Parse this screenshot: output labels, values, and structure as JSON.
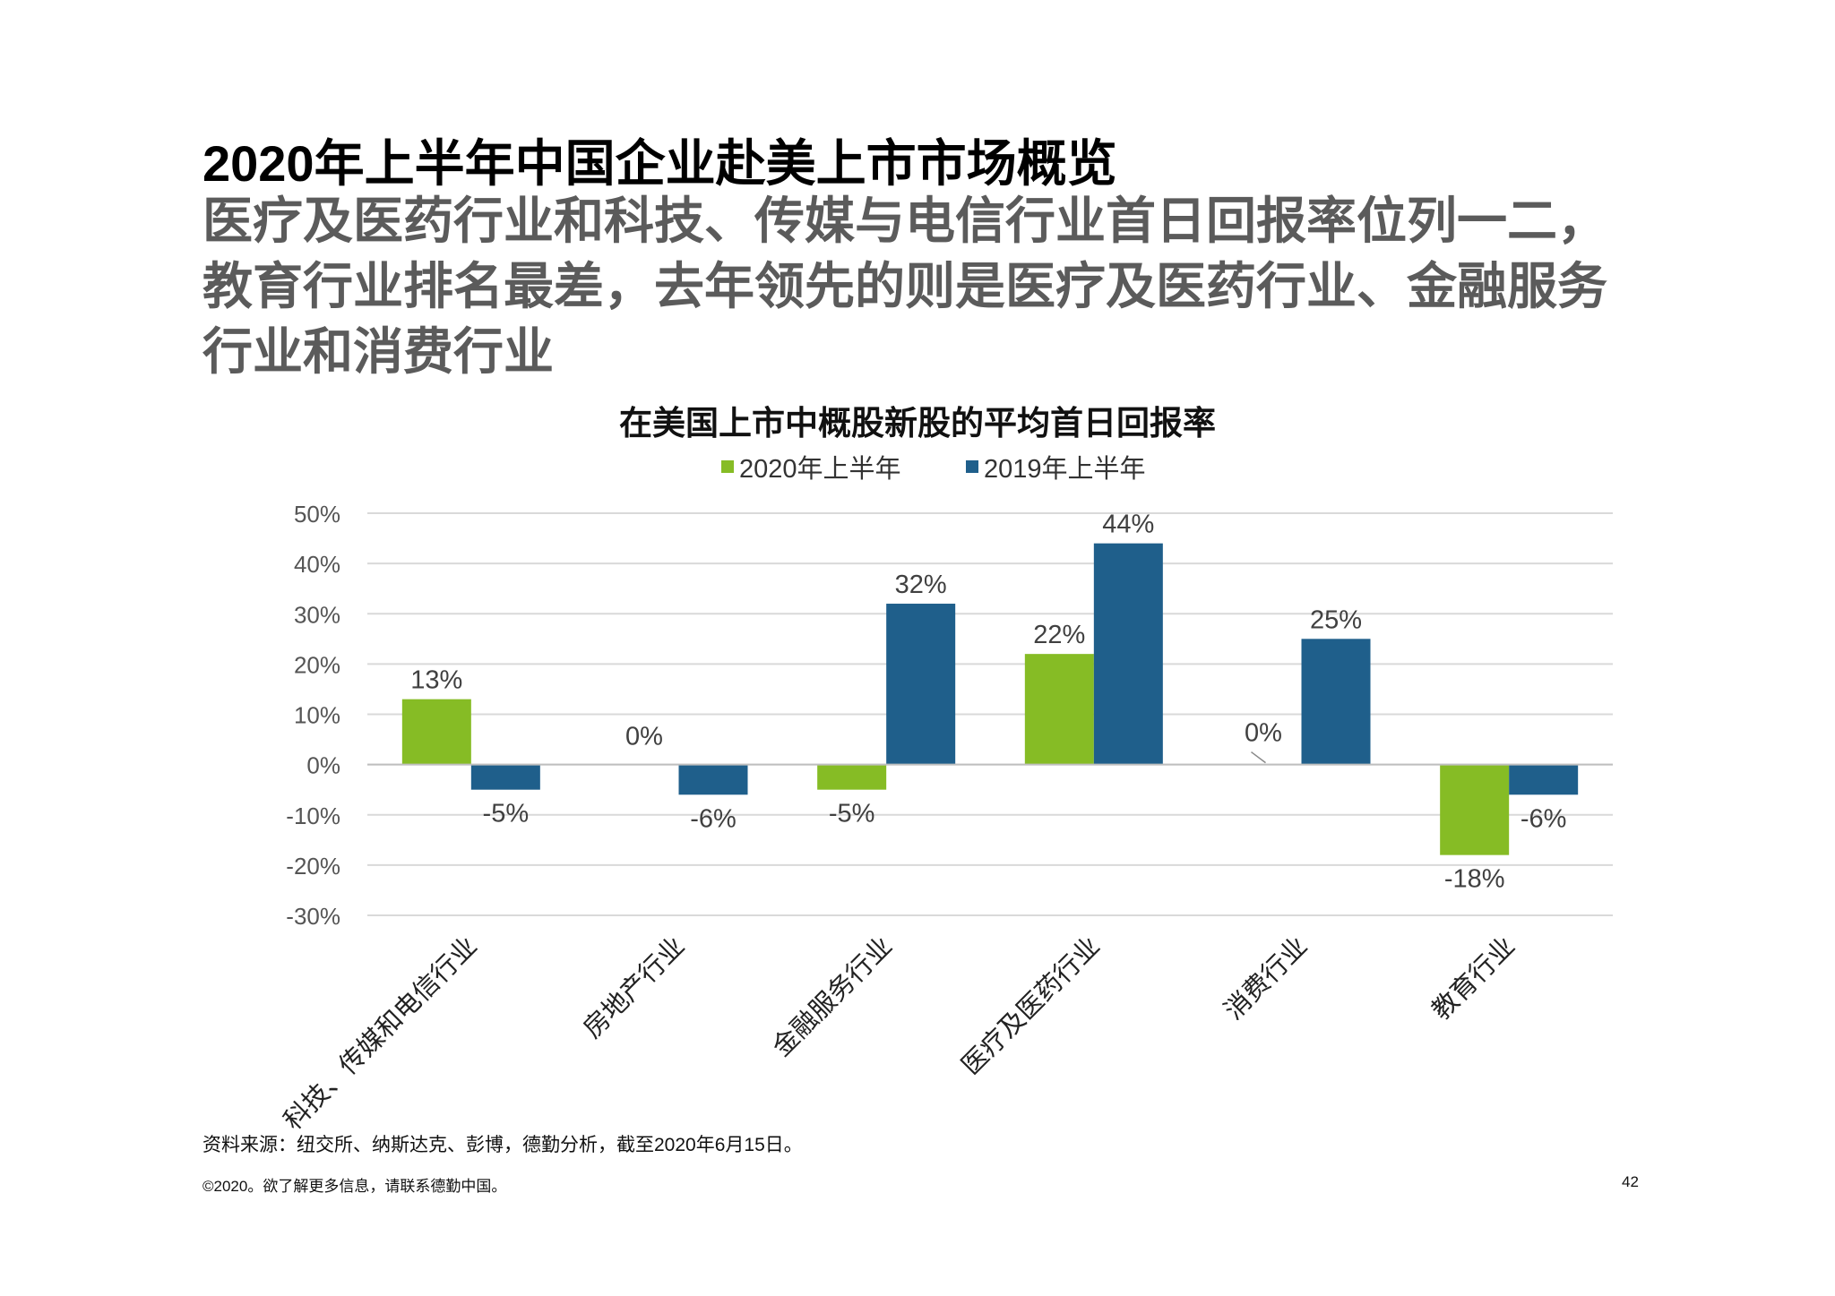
{
  "slide": {
    "title": "2020年上半年中国企业赴美上市市场概览",
    "subtitle": "医疗及医药行业和科技、传媒与电信行业首日回报率位列一二，教育行业排名最差，去年领先的则是医疗及医药行业、金融服务行业和消费行业",
    "source": "资料来源：纽交所、纳斯达克、彭博，德勤分析，截至2020年6月15日。",
    "footer": "©2020。欲了解更多信息，请联系德勤中国。",
    "page_number": "42"
  },
  "chart_data": {
    "type": "bar",
    "title": "在美国上市中概股新股的平均首日回报率",
    "xlabel": "",
    "ylabel": "",
    "categories": [
      "科技、传媒和电信行业",
      "房地产行业",
      "金融服务行业",
      "医疗及医药行业",
      "消费行业",
      "教育行业"
    ],
    "series": [
      {
        "name": "2020年上半年",
        "color": "#86bc25",
        "values": [
          13,
          0,
          -5,
          22,
          0,
          -18
        ],
        "labels": [
          "13%",
          "0%",
          "-5%",
          "22%",
          "0%",
          "-18%"
        ]
      },
      {
        "name": "2019年上半年",
        "color": "#1f5f8b",
        "values": [
          -5,
          -6,
          32,
          44,
          25,
          -6
        ],
        "labels": [
          "-5%",
          "-6%",
          "32%",
          "44%",
          "25%",
          "-6%"
        ]
      }
    ],
    "ylim": [
      -30,
      50
    ],
    "yticks": [
      50,
      40,
      30,
      20,
      10,
      0,
      -10,
      -20,
      -30
    ],
    "ytick_labels": [
      "50%",
      "40%",
      "30%",
      "20%",
      "10%",
      "0%",
      "-10%",
      "-20%",
      "-30%"
    ],
    "grid": true,
    "legend_position": "top-center"
  }
}
